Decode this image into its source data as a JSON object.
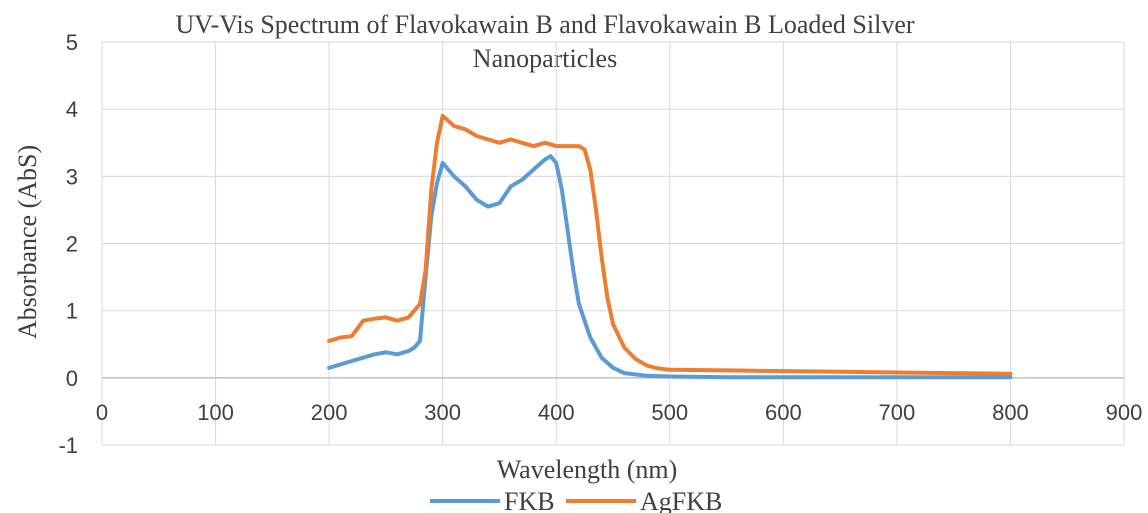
{
  "chart_data": {
    "type": "line",
    "title_line1": "UV-Vis Spectrum of Flavokawain B and Flavokawain B Loaded Silver",
    "title_line2": "Nanoparticles",
    "xlabel": "Wavelength (nm)",
    "ylabel": "Absorbance (AbS)",
    "xlim": [
      0,
      900
    ],
    "ylim": [
      -1,
      5
    ],
    "x_ticks": [
      0,
      100,
      200,
      300,
      400,
      500,
      600,
      700,
      800,
      900
    ],
    "y_ticks": [
      -1,
      0,
      1,
      2,
      3,
      4,
      5
    ],
    "grid": true,
    "legend_position": "bottom",
    "series": [
      {
        "name": "FKB",
        "color": "#5b9bd5",
        "x": [
          200,
          210,
          220,
          230,
          240,
          250,
          260,
          270,
          275,
          280,
          285,
          290,
          295,
          300,
          305,
          310,
          320,
          330,
          340,
          350,
          360,
          370,
          380,
          390,
          395,
          400,
          405,
          410,
          415,
          420,
          430,
          440,
          450,
          460,
          480,
          500,
          550,
          600,
          700,
          800
        ],
        "y": [
          0.15,
          0.2,
          0.25,
          0.3,
          0.35,
          0.38,
          0.35,
          0.4,
          0.45,
          0.55,
          1.5,
          2.4,
          2.9,
          3.2,
          3.1,
          3.0,
          2.85,
          2.65,
          2.55,
          2.6,
          2.85,
          2.95,
          3.1,
          3.25,
          3.3,
          3.2,
          2.8,
          2.2,
          1.6,
          1.1,
          0.6,
          0.3,
          0.15,
          0.07,
          0.03,
          0.02,
          0.01,
          0.01,
          0.01,
          0.01
        ]
      },
      {
        "name": "AgFKB",
        "color": "#ed7d31",
        "x": [
          200,
          210,
          220,
          230,
          240,
          250,
          260,
          270,
          280,
          285,
          290,
          295,
          300,
          310,
          320,
          330,
          340,
          350,
          360,
          370,
          380,
          390,
          400,
          410,
          420,
          425,
          430,
          435,
          440,
          445,
          450,
          460,
          470,
          480,
          490,
          500,
          550,
          600,
          650,
          700,
          750,
          800
        ],
        "y": [
          0.55,
          0.6,
          0.62,
          0.85,
          0.88,
          0.9,
          0.85,
          0.9,
          1.1,
          1.6,
          2.8,
          3.5,
          3.9,
          3.75,
          3.7,
          3.6,
          3.55,
          3.5,
          3.55,
          3.5,
          3.45,
          3.5,
          3.45,
          3.45,
          3.45,
          3.4,
          3.1,
          2.5,
          1.8,
          1.2,
          0.8,
          0.45,
          0.28,
          0.18,
          0.14,
          0.12,
          0.11,
          0.1,
          0.09,
          0.08,
          0.07,
          0.06
        ]
      }
    ]
  }
}
